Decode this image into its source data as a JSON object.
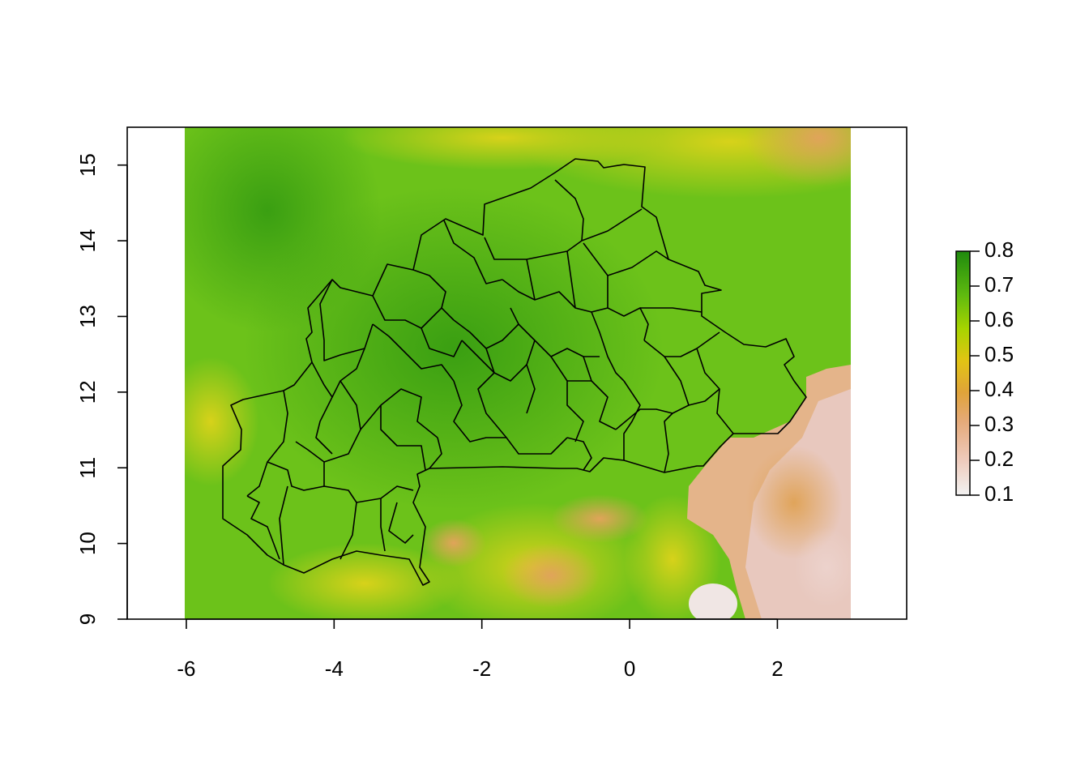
{
  "chart_data": {
    "type": "raster-map",
    "x_ticks": [
      -6,
      -4,
      -2,
      0,
      2
    ],
    "y_ticks": [
      9,
      10,
      11,
      12,
      13,
      14,
      15
    ],
    "xlim": [
      -6.8,
      3.75
    ],
    "ylim": [
      9,
      15.5
    ],
    "raster_extent": {
      "xmin": -6,
      "xmax": 3,
      "ymin": 9,
      "ymax": 15.5
    },
    "legend": {
      "min": 0.1,
      "max": 0.8,
      "ticks": [
        0.1,
        0.2,
        0.3,
        0.4,
        0.5,
        0.6,
        0.7,
        0.8
      ],
      "colors": [
        "#f2f2f2",
        "#eec9b9",
        "#e5aa7a",
        "#e0a33a",
        "#e2c414",
        "#a8d400",
        "#5fba0f",
        "#2f9a0f",
        "#1f8a0e"
      ]
    },
    "grid": false,
    "legend_placement": "right"
  }
}
